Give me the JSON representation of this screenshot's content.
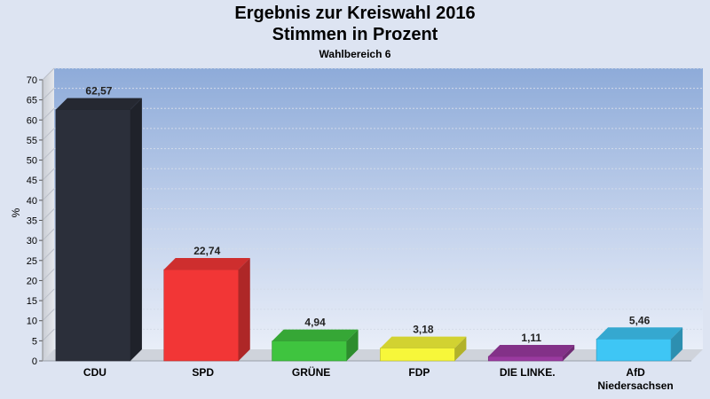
{
  "chart_data": {
    "type": "bar",
    "title": "Ergebnis zur Kreiswahl 2016",
    "title_line2": "Stimmen in Prozent",
    "subtitle": "Wahlbereich 6",
    "xlabel": "",
    "ylabel": "%",
    "ylim": [
      0,
      70
    ],
    "yticks": [
      "0",
      "5",
      "10",
      "15",
      "20",
      "25",
      "30",
      "35",
      "40",
      "45",
      "50",
      "55",
      "60",
      "65",
      "70"
    ],
    "grid": true,
    "categories": [
      [
        "CDU"
      ],
      [
        "SPD"
      ],
      [
        "GRÜNE"
      ],
      [
        "FDP"
      ],
      [
        "DIE LINKE."
      ],
      [
        "AfD",
        "Niedersachsen"
      ]
    ],
    "values": [
      62.57,
      22.74,
      4.94,
      3.18,
      1.11,
      5.46
    ],
    "value_labels": [
      "62,57",
      "22,74",
      "4,94",
      "3,18",
      "1,11",
      "5,46"
    ],
    "colors": [
      "#2b2f3a",
      "#f23636",
      "#3fc43f",
      "#f7f73a",
      "#9a3aa0",
      "#3ec6f5"
    ]
  }
}
